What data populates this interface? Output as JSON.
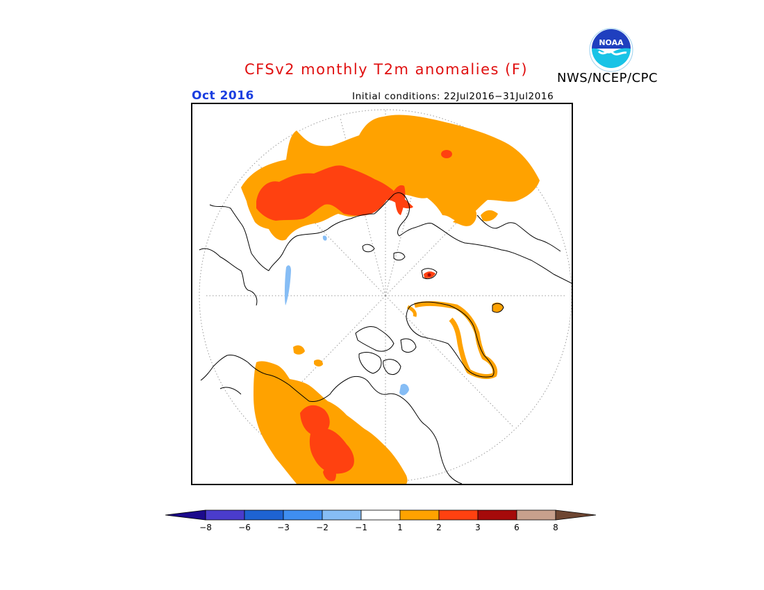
{
  "title": "CFSv2 monthly T2m anomalies (F)",
  "agency": "NWS/NCEP/CPC",
  "logo_text": "NOAA",
  "month": "Oct 2016",
  "initial_conditions": "Initial conditions: 22Jul2016−31Jul2016",
  "colorbar": {
    "ticks": [
      "−8",
      "−6",
      "−3",
      "−2",
      "−1",
      "1",
      "2",
      "3",
      "6",
      "8"
    ],
    "colors": [
      "#1c0a8c",
      "#4a3ccc",
      "#1e63d2",
      "#3f8ef0",
      "#86bdf5",
      "#ffffff",
      "#ffa200",
      "#ff4110",
      "#a50a0a",
      "#c8a08c",
      "#6e4632"
    ]
  },
  "map_colors": {
    "plus_1_to_2": "#ffa200",
    "plus_2_to_3": "#ff4110",
    "plus_3_to_6": "#a50a0a",
    "minus_1_to_2": "#86bdf5",
    "minus_2_to_3": "#3f8ef0"
  }
}
